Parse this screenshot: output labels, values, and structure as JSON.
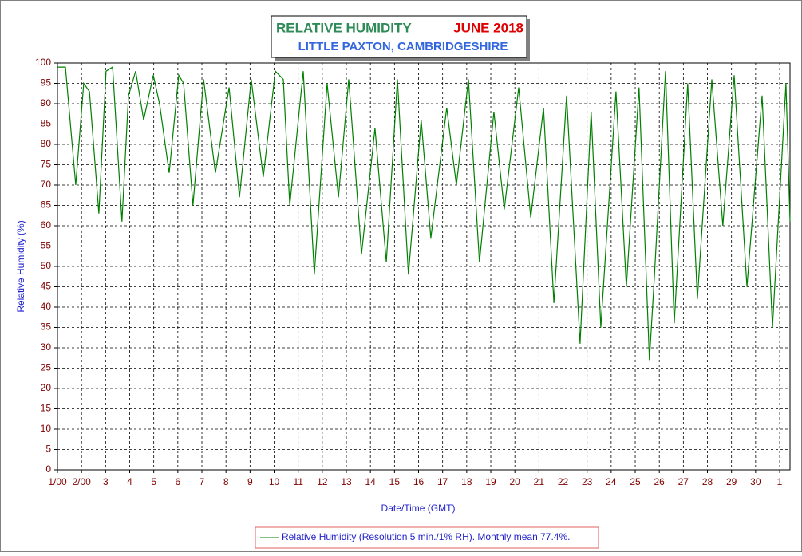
{
  "chart_data": {
    "type": "line",
    "title": "RELATIVE HUMIDITY",
    "title_period": "JUNE 2018",
    "subtitle": "LITTLE PAXTON, CAMBRIDGESHIRE",
    "x_label": "Date/Time (GMT)",
    "y_label": "Relative Humidity (%)",
    "grid": true,
    "xlim": [
      0,
      30.43
    ],
    "ylim": [
      0,
      100
    ],
    "yticks": [
      0,
      5,
      10,
      15,
      20,
      25,
      30,
      35,
      40,
      45,
      50,
      55,
      60,
      65,
      70,
      75,
      80,
      85,
      90,
      95,
      100
    ],
    "xticks": [
      {
        "value": 0,
        "label": "1/00"
      },
      {
        "value": 1,
        "label": "2/00"
      },
      {
        "value": 2,
        "label": "3"
      },
      {
        "value": 3,
        "label": "4"
      },
      {
        "value": 4,
        "label": "5"
      },
      {
        "value": 5,
        "label": "6"
      },
      {
        "value": 6,
        "label": "7"
      },
      {
        "value": 7,
        "label": "8"
      },
      {
        "value": 8,
        "label": "9"
      },
      {
        "value": 9,
        "label": "10"
      },
      {
        "value": 10,
        "label": "11"
      },
      {
        "value": 11,
        "label": "12"
      },
      {
        "value": 12,
        "label": "13"
      },
      {
        "value": 13,
        "label": "14"
      },
      {
        "value": 14,
        "label": "15"
      },
      {
        "value": 15,
        "label": "16"
      },
      {
        "value": 16,
        "label": "17"
      },
      {
        "value": 17,
        "label": "18"
      },
      {
        "value": 18,
        "label": "19"
      },
      {
        "value": 19,
        "label": "20"
      },
      {
        "value": 20,
        "label": "21"
      },
      {
        "value": 21,
        "label": "22"
      },
      {
        "value": 22,
        "label": "23"
      },
      {
        "value": 23,
        "label": "24"
      },
      {
        "value": 24,
        "label": "25"
      },
      {
        "value": 25,
        "label": "26"
      },
      {
        "value": 26,
        "label": "27"
      },
      {
        "value": 27,
        "label": "28"
      },
      {
        "value": 28,
        "label": "29"
      },
      {
        "value": 29,
        "label": "30"
      },
      {
        "value": 30,
        "label": "1"
      }
    ],
    "series": [
      {
        "name": "Relative Humidity (Resolution 5 min./1% RH). Monthly mean 77.4%.",
        "color": "#008000",
        "x": [
          0,
          0.33,
          0.76,
          1.09,
          1.33,
          1.72,
          2.02,
          2.29,
          2.68,
          2.95,
          3.25,
          3.58,
          3.98,
          4.24,
          4.64,
          5.04,
          5.24,
          5.63,
          6.07,
          6.56,
          7.13,
          7.56,
          8.05,
          8.55,
          9.05,
          9.38,
          9.65,
          10.21,
          10.67,
          11.2,
          11.67,
          12.1,
          12.63,
          13.19,
          13.66,
          14.12,
          14.58,
          15.11,
          15.51,
          16.17,
          16.57,
          17.07,
          17.53,
          18.13,
          18.56,
          19.16,
          19.66,
          20.19,
          20.62,
          21.15,
          21.71,
          22.17,
          22.57,
          23.2,
          23.63,
          24.16,
          24.59,
          24.79,
          25.26,
          25.62,
          26.18,
          26.58,
          27.18,
          27.64,
          28.11,
          28.64,
          29.27,
          29.7,
          30.26,
          30.43
        ],
        "values": [
          99,
          99,
          70,
          95,
          93,
          63,
          98,
          99,
          61,
          92,
          98,
          86,
          97,
          90,
          73,
          97,
          95,
          65,
          96,
          73,
          94,
          67,
          96,
          72,
          98,
          96,
          65,
          98,
          48,
          95,
          67,
          96,
          53,
          84,
          51,
          96,
          48,
          86,
          57,
          89,
          70,
          96,
          51,
          88,
          64,
          94,
          62,
          89,
          41,
          92,
          31,
          88,
          35,
          93,
          45,
          94,
          27,
          47,
          98,
          36,
          95,
          42,
          96,
          60,
          97,
          45,
          92,
          35,
          95,
          61
        ]
      }
    ]
  }
}
